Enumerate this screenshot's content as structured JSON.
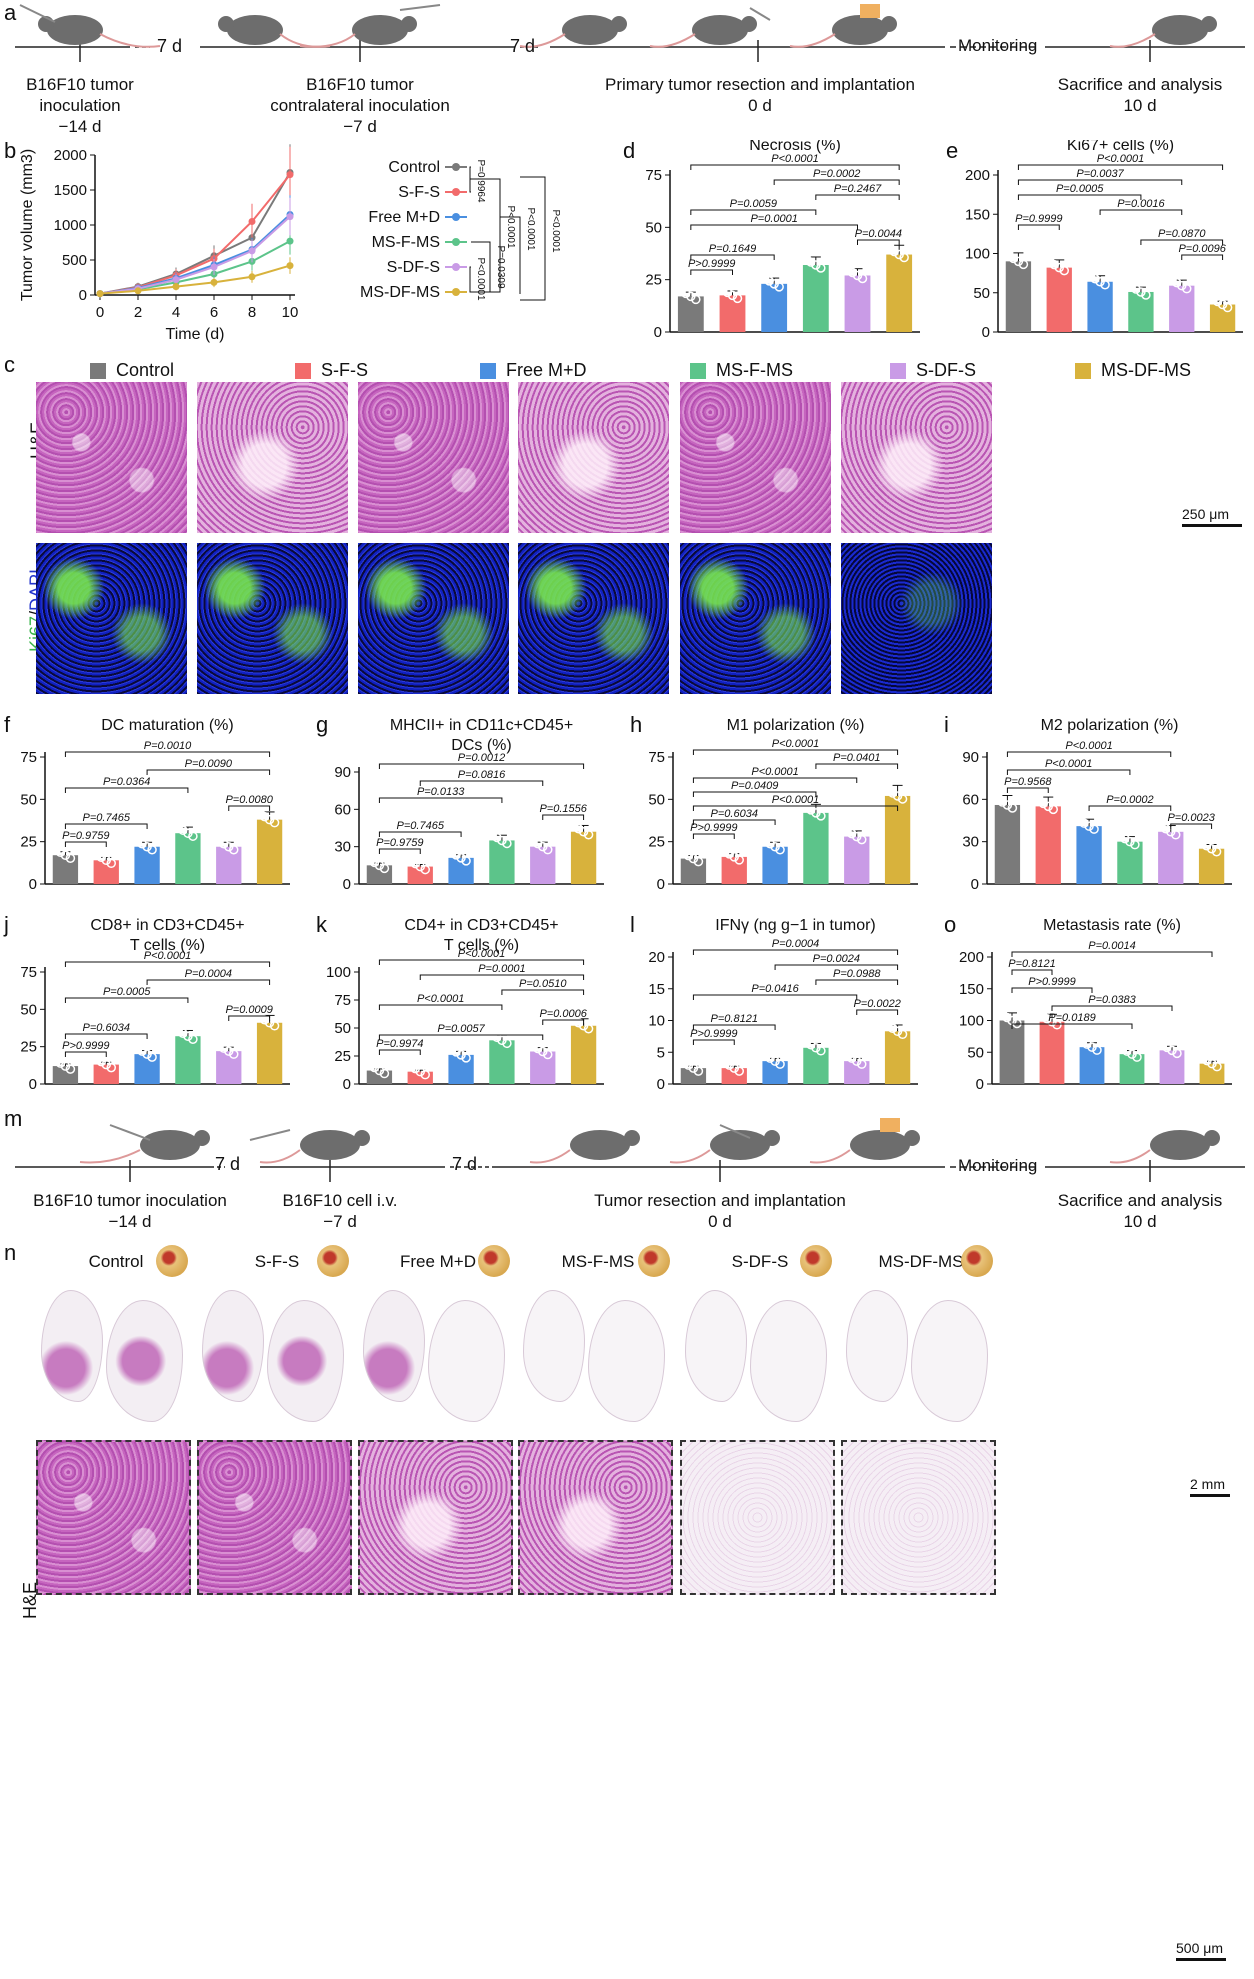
{
  "panel_letters": {
    "a": "a",
    "b": "b",
    "c": "c",
    "d": "d",
    "e": "e",
    "f": "f",
    "g": "g",
    "h": "h",
    "i": "i",
    "j": "j",
    "k": "k",
    "l": "l",
    "m": "m",
    "n": "n",
    "o": "o"
  },
  "timeline_a": {
    "items": [
      {
        "line1": "B16F10 tumor",
        "line2": "inoculation",
        "line3": "−14 d"
      },
      {
        "line1": "B16F10 tumor",
        "line2": "contralateral inoculation",
        "line3": "−7 d"
      },
      {
        "line1": "Primary tumor resection and implantation",
        "line2": "0 d"
      },
      {
        "line1": "Sacrifice and analysis",
        "line2": "10 d"
      }
    ],
    "gaps": [
      "7 d",
      "7 d"
    ],
    "monitoring": "Monitoring"
  },
  "timeline_m": {
    "items": [
      {
        "line1": "B16F10 tumor inoculation",
        "line2": "−14 d"
      },
      {
        "line1": "B16F10 cell i.v.",
        "line2": "−7 d"
      },
      {
        "line1": "Tumor resection and implantation",
        "line2": "0 d"
      },
      {
        "line1": "Sacrifice and analysis",
        "line2": "10 d"
      }
    ],
    "gaps": [
      "7 d",
      "7 d"
    ],
    "monitoring": "Monitoring"
  },
  "groups": [
    "Control",
    "S-F-S",
    "Free M+D",
    "MS-F-MS",
    "S-DF-S",
    "MS-DF-MS"
  ],
  "colors": {
    "Control": "#7a7a7a",
    "S-F-S": "#f26b6b",
    "Free M+D": "#4a8fe0",
    "MS-F-MS": "#5cc48a",
    "S-DF-S": "#c99be6",
    "MS-DF-MS": "#d8b23c"
  },
  "panel_c": {
    "row_labels": {
      "he": "H&E",
      "ki67": "Ki67",
      "dapi": "DAPI"
    },
    "scale_he": "250 μm",
    "scale_ki": "250 μm"
  },
  "panel_n": {
    "row_label": "H&E",
    "scale_top": "2 mm",
    "scale_bottom": "500 μm"
  },
  "chart_data": [
    {
      "id": "b",
      "type": "line",
      "xlabel": "Time (d)",
      "ylabel": "Tumor volume (mm3)",
      "x": [
        0,
        2,
        4,
        6,
        8,
        10
      ],
      "ylim": [
        0,
        2000
      ],
      "yticks": [
        0,
        500,
        1000,
        1500,
        2000
      ],
      "xticks": [
        0,
        2,
        4,
        6,
        8,
        10
      ],
      "series": [
        {
          "name": "Control",
          "values": [
            20,
            120,
            300,
            560,
            820,
            1750
          ]
        },
        {
          "name": "S-F-S",
          "values": [
            20,
            110,
            280,
            520,
            1050,
            1720
          ]
        },
        {
          "name": "Free M+D",
          "values": [
            20,
            100,
            240,
            430,
            650,
            1150
          ]
        },
        {
          "name": "MS-F-MS",
          "values": [
            20,
            80,
            180,
            300,
            480,
            770
          ]
        },
        {
          "name": "S-DF-S",
          "values": [
            20,
            90,
            220,
            400,
            630,
            1120
          ]
        },
        {
          "name": "MS-DF-MS",
          "values": [
            20,
            60,
            120,
            180,
            260,
            420
          ]
        }
      ],
      "stats": [
        "P=0.9964",
        "P<0.0001",
        "P<0.0001",
        "P<0.0001",
        "P=0.0309",
        "P<0.0001"
      ]
    },
    {
      "id": "d",
      "type": "bar",
      "title": "Necrosis (%)",
      "ylim": [
        0,
        75
      ],
      "yticks": [
        0,
        25,
        50,
        75
      ],
      "values": [
        17,
        17.5,
        23,
        32,
        27,
        37
      ],
      "stats": [
        "P<0.0001",
        "P=0.0002",
        "P=0.2467",
        "P=0.0059",
        "P=0.0001",
        "P=0.0044",
        "P=0.1649",
        "P>0.9999"
      ]
    },
    {
      "id": "e",
      "type": "bar",
      "title": "Ki67+ cells (%)",
      "ylim": [
        0,
        200
      ],
      "yticks": [
        0,
        50,
        100,
        150,
        200
      ],
      "values": [
        90,
        82,
        64,
        51,
        59,
        35
      ],
      "stats": [
        "P<0.0001",
        "P=0.0037",
        "P=0.0005",
        "P=0.0016",
        "P=0.9999",
        "P=0.0870",
        "P=0.0096"
      ]
    },
    {
      "id": "f",
      "type": "bar",
      "title": "DC maturation (%)",
      "ylim": [
        0,
        75
      ],
      "yticks": [
        0,
        25,
        50,
        75
      ],
      "values": [
        17,
        14,
        22,
        30,
        22,
        38
      ],
      "stats": [
        "P=0.0010",
        "P=0.0090",
        "P=0.0364",
        "P=0.0080",
        "P=0.7465",
        "P=0.9759"
      ]
    },
    {
      "id": "g",
      "type": "bar",
      "title": "MHCII+ in CD11c+CD45+ DCs (%)",
      "ylim": [
        0,
        90
      ],
      "yticks": [
        0,
        30,
        60,
        90
      ],
      "values": [
        15,
        14,
        21,
        35,
        30,
        42
      ],
      "stats": [
        "P=0.0012",
        "P=0.0816",
        "P=0.0133",
        "P=0.1556",
        "P=0.7465",
        "P=0.9759"
      ]
    },
    {
      "id": "h",
      "type": "bar",
      "title": "M1 polarization (%)",
      "ylim": [
        0,
        75
      ],
      "yticks": [
        0,
        25,
        50,
        75
      ],
      "values": [
        15,
        16,
        22,
        42,
        28,
        52
      ],
      "stats": [
        "P<0.0001",
        "P=0.0401",
        "P<0.0001",
        "P=0.0409",
        "P<0.0001",
        "P=0.6034",
        "P>0.9999"
      ]
    },
    {
      "id": "i",
      "type": "bar",
      "title": "M2 polarization (%)",
      "ylim": [
        0,
        90
      ],
      "yticks": [
        0,
        30,
        60,
        90
      ],
      "values": [
        56,
        55,
        41,
        30,
        37,
        25
      ],
      "stats": [
        "P<0.0001",
        "P<0.0001",
        "P=0.9568",
        "P=0.0002",
        "P=0.0023"
      ]
    },
    {
      "id": "j",
      "type": "bar",
      "title": "CD8+ in CD3+CD45+ T cells (%)",
      "ylim": [
        0,
        75
      ],
      "yticks": [
        0,
        25,
        50,
        75
      ],
      "values": [
        12,
        13,
        20,
        32,
        22,
        41
      ],
      "stats": [
        "P<0.0001",
        "P=0.0004",
        "P=0.0005",
        "P=0.0009",
        "P=0.6034",
        "P>0.9999"
      ]
    },
    {
      "id": "k",
      "type": "bar",
      "title": "CD4+ in CD3+CD45+ T cells (%)",
      "ylim": [
        0,
        100
      ],
      "yticks": [
        0,
        25,
        50,
        75,
        100
      ],
      "values": [
        12,
        11,
        26,
        39,
        29,
        52
      ],
      "stats": [
        "P<0.0001",
        "P=0.0001",
        "P=0.0510",
        "P<0.0001",
        "P=0.0006",
        "P=0.0057",
        "P=0.9974"
      ]
    },
    {
      "id": "l",
      "type": "bar",
      "title": "IFNγ (ng g−1 in tumor)",
      "ylim": [
        0,
        20
      ],
      "yticks": [
        0,
        5,
        10,
        15,
        20
      ],
      "values": [
        2.5,
        2.5,
        3.6,
        5.7,
        3.6,
        8.3
      ],
      "stats": [
        "P=0.0004",
        "P=0.0024",
        "P=0.0988",
        "P=0.0416",
        "P=0.0022",
        "P=0.8121",
        "P>0.9999"
      ]
    },
    {
      "id": "o",
      "type": "bar",
      "title": "Metastasis rate (%)",
      "ylim": [
        0,
        200
      ],
      "yticks": [
        0,
        50,
        100,
        150,
        200
      ],
      "values": [
        100,
        98,
        58,
        47,
        53,
        32
      ],
      "stats": [
        "P=0.0014",
        "P=0.8121",
        "P>0.9999",
        "P=0.0383",
        "P=0.0189"
      ]
    }
  ]
}
